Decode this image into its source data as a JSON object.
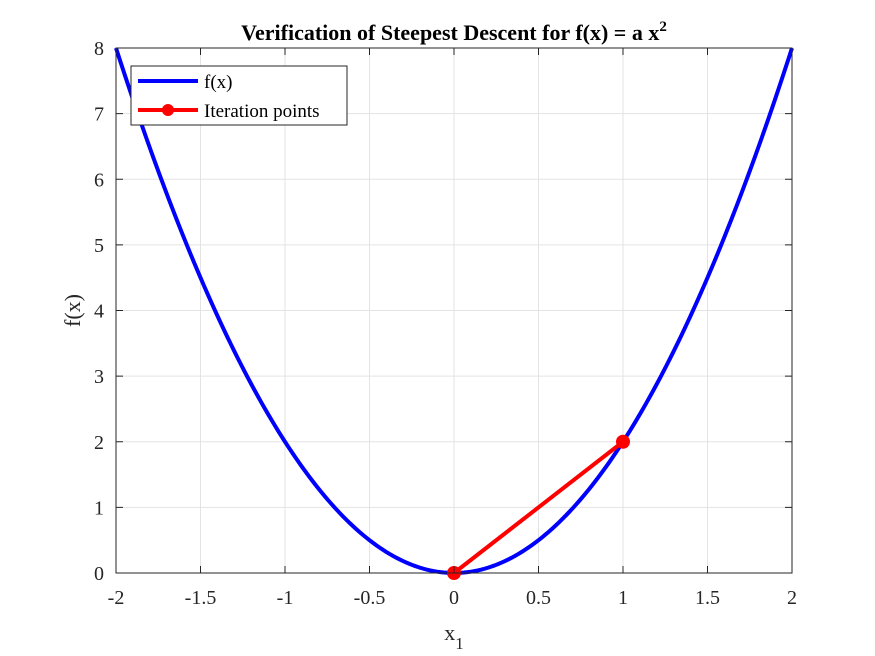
{
  "chart_data": {
    "type": "line",
    "title": {
      "text": "Verification of Steepest Descent for f(x) = a x",
      "superscript": "2"
    },
    "xlabel": {
      "text": "x",
      "subscript": "1"
    },
    "ylabel": "f(x)",
    "xlim": [
      -2,
      2
    ],
    "ylim": [
      0,
      8
    ],
    "xticks": [
      -2,
      -1.5,
      -1,
      -0.5,
      0,
      0.5,
      1,
      1.5,
      2
    ],
    "xtick_labels": [
      "-2",
      "-1.5",
      "-1",
      "-0.5",
      "0",
      "0.5",
      "1",
      "1.5",
      "2"
    ],
    "yticks": [
      0,
      1,
      2,
      3,
      4,
      5,
      6,
      7,
      8
    ],
    "ytick_labels": [
      "0",
      "1",
      "2",
      "3",
      "4",
      "5",
      "6",
      "7",
      "8"
    ],
    "grid": true,
    "legend_position": "top-left",
    "series": [
      {
        "name": "f(x)",
        "color": "#0000ff",
        "curve": "quadratic",
        "coefficient_a": 2,
        "x_range": [
          -2,
          2
        ]
      },
      {
        "name": "Iteration points",
        "color": "#ff0000",
        "marker": "circle",
        "x": [
          1,
          0
        ],
        "y": [
          2,
          0
        ]
      }
    ]
  }
}
